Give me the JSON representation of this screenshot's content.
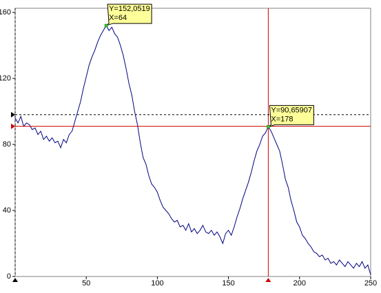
{
  "chart_data": {
    "type": "line",
    "x": [
      0,
      2,
      4,
      6,
      8,
      10,
      12,
      14,
      16,
      18,
      20,
      22,
      24,
      26,
      28,
      30,
      32,
      34,
      36,
      38,
      40,
      42,
      44,
      46,
      48,
      50,
      52,
      54,
      56,
      58,
      60,
      62,
      64,
      66,
      68,
      70,
      72,
      74,
      76,
      78,
      80,
      82,
      84,
      86,
      88,
      90,
      92,
      94,
      96,
      98,
      100,
      102,
      104,
      106,
      108,
      110,
      112,
      114,
      116,
      118,
      120,
      122,
      124,
      126,
      128,
      130,
      132,
      134,
      136,
      138,
      140,
      142,
      144,
      146,
      148,
      150,
      152,
      154,
      156,
      158,
      160,
      162,
      164,
      166,
      168,
      170,
      172,
      174,
      176,
      178,
      180,
      182,
      184,
      186,
      188,
      190,
      192,
      194,
      196,
      198,
      200,
      202,
      204,
      206,
      208,
      210,
      212,
      214,
      216,
      218,
      220,
      222,
      224,
      226,
      228,
      230,
      232,
      234,
      236,
      238,
      240,
      242,
      244,
      246,
      248,
      250
    ],
    "series": [
      {
        "color": "#000080",
        "values": [
          96,
          93,
          97,
          91,
          93,
          92,
          89,
          90,
          86,
          88,
          83,
          85,
          82,
          84,
          81,
          82,
          78,
          83,
          81,
          86,
          88,
          94,
          100,
          106,
          114,
          121,
          128,
          133,
          137,
          142,
          146,
          149,
          152.0519,
          149,
          151,
          147,
          145,
          140,
          134,
          126,
          117,
          110,
          100,
          92,
          81,
          72,
          68,
          61,
          56,
          54,
          51,
          46,
          42,
          40,
          38,
          35,
          33,
          34,
          30,
          31,
          28,
          32,
          27,
          29,
          26,
          28,
          31,
          27,
          26,
          28,
          25,
          27,
          24,
          20,
          26,
          28,
          25,
          30,
          36,
          41,
          47,
          52,
          57,
          63,
          70,
          76,
          80,
          85,
          87,
          90.65907,
          88,
          84,
          80,
          76,
          68,
          59,
          54,
          46,
          40,
          33,
          30,
          25,
          23,
          20,
          18,
          15,
          14,
          12,
          13,
          10,
          11,
          8,
          9,
          7,
          10,
          8,
          6,
          9,
          7,
          5,
          8,
          6,
          9,
          5,
          7,
          1
        ]
      }
    ],
    "xlim": [
      0,
      250
    ],
    "ylim": [
      0,
      162.5
    ],
    "xticks": [
      50,
      100,
      150,
      200,
      250
    ],
    "yticks": [
      0,
      40,
      80,
      120,
      160
    ],
    "annotations": [
      {
        "x": 64,
        "y": 152.0519,
        "lines": [
          "Y=152,0519",
          "X=64"
        ]
      },
      {
        "x": 178,
        "y": 90.65907,
        "lines": [
          "Y=90,65907",
          "X=178"
        ]
      }
    ],
    "cursors": [
      {
        "x": 178,
        "y": 91,
        "color": "#cc0000",
        "dashed": false
      },
      {
        "x": 0,
        "y": 98,
        "color": "#000000",
        "dashed": true
      }
    ]
  }
}
